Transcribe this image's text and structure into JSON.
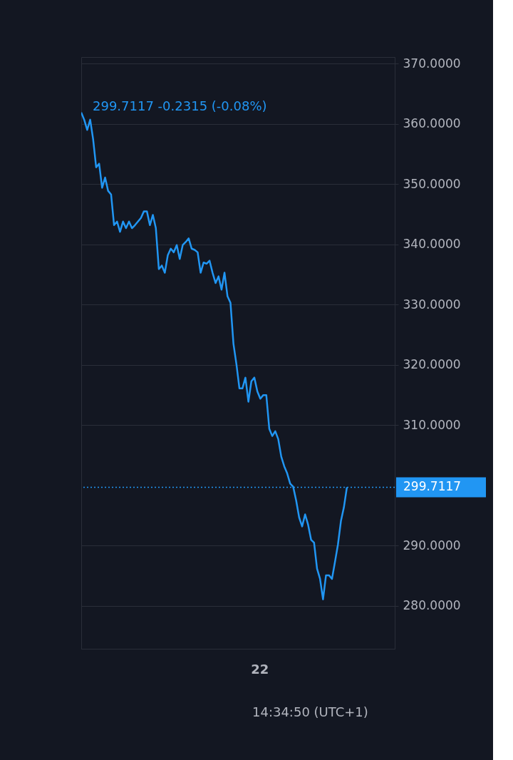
{
  "chart_data": {
    "type": "line",
    "categories": [
      null,
      null,
      null,
      null,
      null,
      null,
      null,
      null,
      null,
      null,
      null,
      null,
      null,
      null,
      null,
      null,
      null,
      null,
      null,
      null,
      null,
      null,
      null,
      null,
      null,
      null,
      null,
      null,
      null,
      null,
      null,
      null,
      null,
      null,
      null,
      null,
      null,
      null,
      null,
      null,
      null,
      null,
      null,
      null,
      null,
      null,
      null,
      null,
      null,
      null,
      null,
      null,
      null,
      null,
      null,
      null,
      null,
      null,
      null,
      null,
      null,
      null,
      null,
      null,
      null,
      null,
      null,
      null,
      null,
      null,
      null,
      null,
      null,
      null,
      null,
      null,
      null,
      null,
      null,
      null,
      null,
      null,
      null,
      null,
      null,
      null,
      null,
      null,
      null,
      null
    ],
    "series": [
      {
        "color": "#2196f3",
        "values": [
          361.9,
          360.7,
          359.0,
          360.7,
          357.4,
          352.8,
          353.4,
          349.4,
          351.1,
          348.9,
          348.3,
          343.2,
          343.8,
          342.1,
          343.8,
          342.7,
          343.8,
          342.7,
          343.2,
          343.8,
          344.4,
          345.5,
          345.5,
          343.2,
          344.9,
          342.7,
          335.9,
          336.5,
          335.3,
          338.2,
          339.3,
          338.7,
          339.9,
          337.6,
          339.9,
          340.4,
          341.0,
          339.3,
          339.1,
          338.7,
          335.3,
          337.0,
          336.8,
          337.3,
          335.3,
          333.6,
          334.7,
          332.5,
          335.3,
          331.4,
          330.3,
          323.5,
          320.1,
          316.1,
          316.1,
          317.9,
          313.9,
          317.3,
          317.9,
          315.6,
          314.4,
          315.0,
          315.0,
          309.4,
          308.2,
          309.0,
          307.7,
          304.8,
          303.2,
          302.0,
          300.3,
          299.8,
          297.5,
          294.7,
          293.2,
          295.2,
          293.5,
          291.0,
          290.5,
          286.2,
          284.5,
          281.1,
          285.1,
          285.1,
          284.5,
          287.3,
          290.2,
          294.1,
          296.4,
          299.7
        ]
      }
    ],
    "ylim": [
      272.9,
      371.1
    ],
    "yticks": [
      {
        "value": 280,
        "label": "280.0000"
      },
      {
        "value": 290,
        "label": "290.0000"
      },
      {
        "value": 310,
        "label": "310.0000"
      },
      {
        "value": 320,
        "label": "320.0000"
      },
      {
        "value": 330,
        "label": "330.0000"
      },
      {
        "value": 340,
        "label": "340.0000"
      },
      {
        "value": 350,
        "label": "350.0000"
      },
      {
        "value": 360,
        "label": "360.0000"
      },
      {
        "value": 370,
        "label": "370.0000"
      }
    ],
    "ref_lines": [
      {
        "axis": "y",
        "value": 299.7117,
        "label": "299.7117",
        "color": "#2196f3",
        "line_style": "dotted"
      }
    ],
    "annotations": [
      "299.7117  -0.2315 (-0.08%)",
      "14:34:50 (UTC+1)",
      "22"
    ],
    "grid": "y",
    "marker": "none",
    "line_style": "solid"
  }
}
